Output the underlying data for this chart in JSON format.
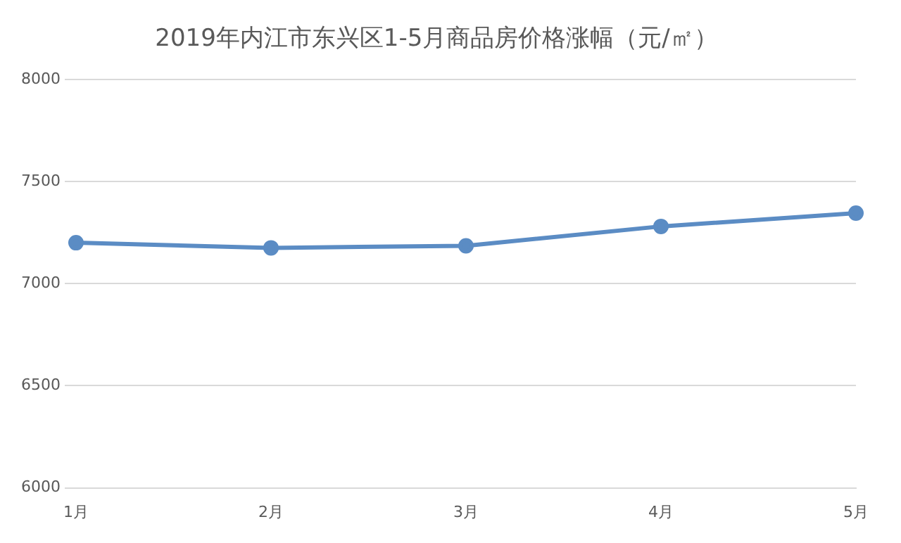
{
  "chart_data": {
    "type": "line",
    "title": "2019年内江市东兴区1-5月商品房价格涨幅（元/㎡）",
    "categories": [
      "1月",
      "2月",
      "3月",
      "4月",
      "5月"
    ],
    "series": [
      {
        "color": "#5b8cc4",
        "values": [
          7200,
          7175,
          7185,
          7280,
          7345
        ]
      }
    ],
    "ylim": [
      6000,
      8000
    ],
    "yticks": [
      6000,
      6500,
      7000,
      7500,
      8000
    ],
    "grid": "y",
    "legend": false,
    "marker": "circle",
    "line_style": "solid"
  }
}
